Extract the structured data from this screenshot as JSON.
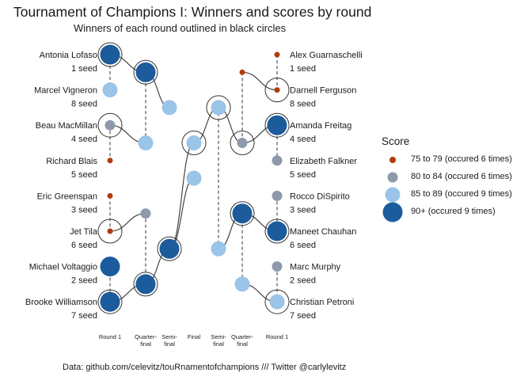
{
  "title": "Tournament of Champions I: Winners and scores by round",
  "subtitle": "Winners of each round outlined in black circles",
  "caption": "Data: github.com/celevitz/touRnamentofchampions /// Twitter @carlylevitz",
  "legend": {
    "title": "Score",
    "items": [
      {
        "label": "75 to 79 (occured 6 times)",
        "color": "#b33a0d"
      },
      {
        "label": "80 to 84 (occured 6 times)",
        "color": "#8c9aab"
      },
      {
        "label": "85 to 89 (occured 9 times)",
        "color": "#9ac4e8"
      },
      {
        "label": "90+ (occured 9 times)",
        "color": "#1c5b9c"
      }
    ]
  },
  "chart_data": {
    "type": "scatter",
    "title": "Tournament of Champions I: Winners and scores by round",
    "subtitle": "Winners of each round outlined in black circles",
    "x_labels": [
      "Round 1",
      "Quarter-\nfinal",
      "Semi-\nfinal",
      "Final",
      "Semi-\nfinal",
      "Quarter-\nfinal",
      "Round 1"
    ],
    "left_seeds": [
      {
        "name": "Antonia Lofaso",
        "seed": "1 seed"
      },
      {
        "name": "Marcel Vigneron",
        "seed": "8 seed"
      },
      {
        "name": "Beau MacMillan",
        "seed": "4 seed"
      },
      {
        "name": "Richard Blais",
        "seed": "5 seed"
      },
      {
        "name": "Eric Greenspan",
        "seed": "3 seed"
      },
      {
        "name": "Jet Tila",
        "seed": "6 seed"
      },
      {
        "name": "Michael Voltaggio",
        "seed": "2 seed"
      },
      {
        "name": "Brooke Williamson",
        "seed": "7 seed"
      }
    ],
    "right_seeds": [
      {
        "name": "Alex Guarnaschelli",
        "seed": "1 seed"
      },
      {
        "name": "Darnell Ferguson",
        "seed": "8 seed"
      },
      {
        "name": "Amanda Freitag",
        "seed": "4 seed"
      },
      {
        "name": "Elizabeth Falkner",
        "seed": "5 seed"
      },
      {
        "name": "Rocco DiSpirito",
        "seed": "3 seed"
      },
      {
        "name": "Maneet Chauhan",
        "seed": "6 seed"
      },
      {
        "name": "Marc Murphy",
        "seed": "2 seed"
      },
      {
        "name": "Christian Petroni",
        "seed": "7 seed"
      }
    ],
    "score_categories": [
      "75 to 79",
      "80 to 84",
      "85 to 89",
      "90+"
    ],
    "points": [
      {
        "x": 1,
        "y": 1,
        "score": "90+",
        "winner": true
      },
      {
        "x": 1,
        "y": 2,
        "score": "85 to 89",
        "winner": false
      },
      {
        "x": 1,
        "y": 3,
        "score": "80 to 84",
        "winner": true
      },
      {
        "x": 1,
        "y": 4,
        "score": "75 to 79",
        "winner": false
      },
      {
        "x": 1,
        "y": 5,
        "score": "75 to 79",
        "winner": false
      },
      {
        "x": 1,
        "y": 6,
        "score": "75 to 79",
        "winner": true
      },
      {
        "x": 1,
        "y": 7,
        "score": "90+",
        "winner": false
      },
      {
        "x": 1,
        "y": 8,
        "score": "90+",
        "winner": true
      },
      {
        "x": 2,
        "y": 1.5,
        "score": "90+",
        "winner": true
      },
      {
        "x": 2,
        "y": 3.5,
        "score": "85 to 89",
        "winner": false
      },
      {
        "x": 2,
        "y": 5.5,
        "score": "80 to 84",
        "winner": false
      },
      {
        "x": 2,
        "y": 7.5,
        "score": "90+",
        "winner": true
      },
      {
        "x": 3,
        "y": 2.5,
        "score": "85 to 89",
        "winner": false
      },
      {
        "x": 3,
        "y": 6.5,
        "score": "90+",
        "winner": true
      },
      {
        "x": 4,
        "y": 3.5,
        "score": "85 to 89",
        "winner": true
      },
      {
        "x": 4,
        "y": 4.5,
        "score": "85 to 89",
        "winner": false
      },
      {
        "x": 5,
        "y": 2.5,
        "score": "85 to 89",
        "winner": true
      },
      {
        "x": 5,
        "y": 6.5,
        "score": "85 to 89",
        "winner": false
      },
      {
        "x": 6,
        "y": 1.5,
        "score": "75 to 79",
        "winner": false
      },
      {
        "x": 6,
        "y": 3.5,
        "score": "80 to 84",
        "winner": true
      },
      {
        "x": 6,
        "y": 5.5,
        "score": "90+",
        "winner": true
      },
      {
        "x": 6,
        "y": 7.5,
        "score": "85 to 89",
        "winner": false
      },
      {
        "x": 7,
        "y": 1,
        "score": "75 to 79",
        "winner": false
      },
      {
        "x": 7,
        "y": 2,
        "score": "75 to 79",
        "winner": true
      },
      {
        "x": 7,
        "y": 3,
        "score": "90+",
        "winner": true
      },
      {
        "x": 7,
        "y": 4,
        "score": "80 to 84",
        "winner": false
      },
      {
        "x": 7,
        "y": 5,
        "score": "80 to 84",
        "winner": false
      },
      {
        "x": 7,
        "y": 6,
        "score": "90+",
        "winner": true
      },
      {
        "x": 7,
        "y": 7,
        "score": "80 to 84",
        "winner": false
      },
      {
        "x": 7,
        "y": 8,
        "score": "85 to 89",
        "winner": true
      }
    ],
    "paths": [
      [
        [
          1,
          1
        ],
        [
          2,
          1.5
        ],
        [
          3,
          2.5
        ]
      ],
      [
        [
          1,
          3
        ],
        [
          2,
          3.5
        ]
      ],
      [
        [
          1,
          6
        ],
        [
          2,
          5.5
        ]
      ],
      [
        [
          1,
          8
        ],
        [
          2,
          7.5
        ],
        [
          3,
          6.5
        ],
        [
          4,
          4.5
        ]
      ],
      [
        [
          3,
          6.5
        ],
        [
          4,
          3.5
        ],
        [
          5,
          2.5
        ],
        [
          6,
          3.5
        ],
        [
          7,
          3
        ]
      ],
      [
        [
          7,
          2
        ],
        [
          6,
          1.5
        ]
      ],
      [
        [
          7,
          6
        ],
        [
          6,
          5.5
        ],
        [
          5,
          6.5
        ]
      ],
      [
        [
          7,
          8
        ],
        [
          6,
          7.5
        ]
      ]
    ],
    "dashed": [
      [
        [
          1,
          1
        ],
        [
          1,
          2
        ]
      ],
      [
        [
          1,
          3
        ],
        [
          1,
          4
        ]
      ],
      [
        [
          1,
          5
        ],
        [
          1,
          6
        ]
      ],
      [
        [
          1,
          7
        ],
        [
          1,
          8
        ]
      ],
      [
        [
          2,
          1.5
        ],
        [
          2,
          3.5
        ]
      ],
      [
        [
          2,
          5.5
        ],
        [
          2,
          7.5
        ]
      ],
      [
        [
          7,
          1
        ],
        [
          7,
          2
        ]
      ],
      [
        [
          7,
          3
        ],
        [
          7,
          4
        ]
      ],
      [
        [
          7,
          5
        ],
        [
          7,
          6
        ]
      ],
      [
        [
          7,
          7
        ],
        [
          7,
          8
        ]
      ],
      [
        [
          6,
          1.5
        ],
        [
          6,
          3.5
        ]
      ],
      [
        [
          6,
          5.5
        ],
        [
          6,
          7.5
        ]
      ],
      [
        [
          5,
          2.5
        ],
        [
          5,
          6.5
        ]
      ]
    ],
    "grid": false,
    "legend_position": "right"
  }
}
